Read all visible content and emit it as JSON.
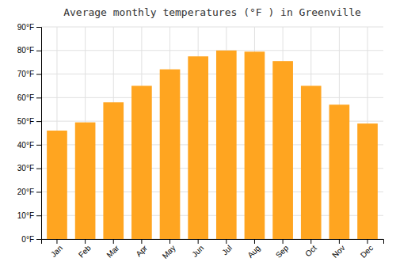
{
  "chart_data": {
    "type": "bar",
    "title": "Average monthly temperatures (°F ) in Greenville",
    "categories": [
      "Jan",
      "Feb",
      "Mar",
      "Apr",
      "May",
      "Jun",
      "Jul",
      "Aug",
      "Sep",
      "Oct",
      "Nov",
      "Dec"
    ],
    "values": [
      46,
      49.5,
      58,
      65,
      72,
      77.5,
      80,
      79.5,
      75.5,
      65,
      57,
      49
    ],
    "color": "#FFA520",
    "ylim": [
      0,
      90
    ],
    "yticks": [
      {
        "value": 0,
        "label": "0°F"
      },
      {
        "value": 10,
        "label": "10°F"
      },
      {
        "value": 20,
        "label": "20°F"
      },
      {
        "value": 30,
        "label": "30°F"
      },
      {
        "value": 40,
        "label": "40°F"
      },
      {
        "value": 50,
        "label": "50°F"
      },
      {
        "value": 60,
        "label": "60°F"
      },
      {
        "value": 70,
        "label": "70°F"
      },
      {
        "value": 80,
        "label": "80°F"
      },
      {
        "value": 90,
        "label": "90°F"
      }
    ],
    "grid": true
  }
}
